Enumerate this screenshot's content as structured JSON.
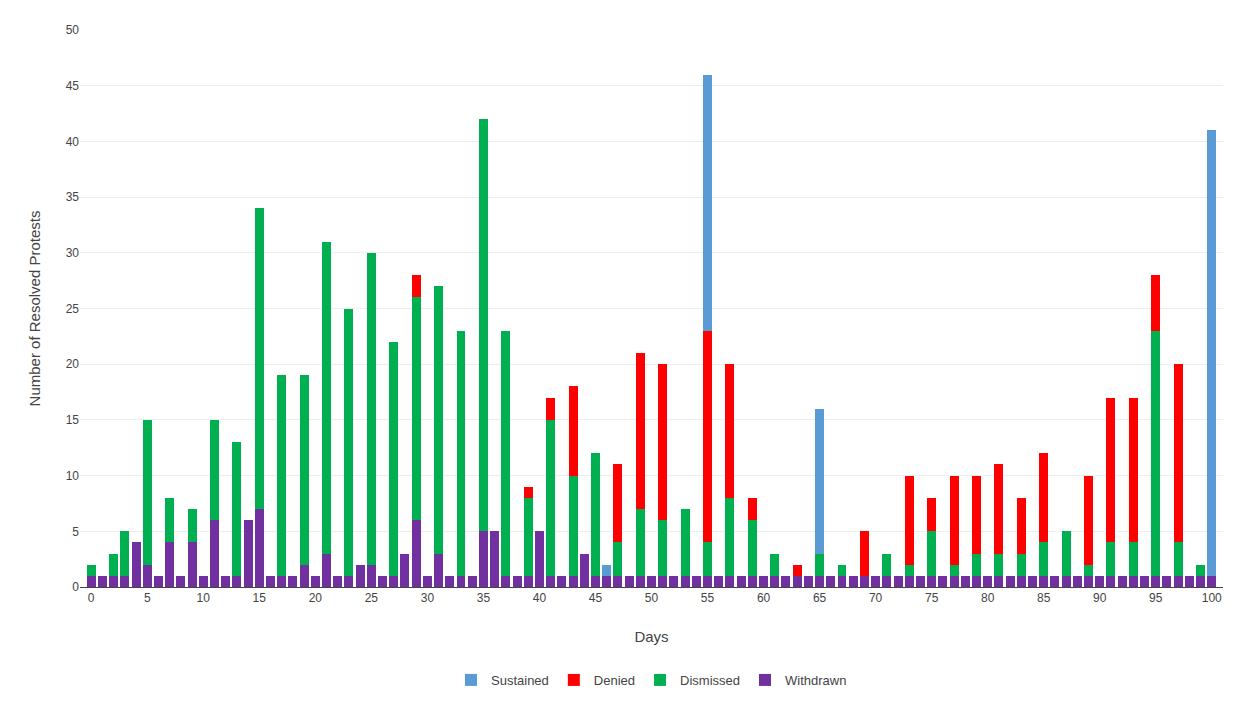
{
  "chart_data": {
    "type": "bar",
    "stacked": true,
    "xlabel": "Days",
    "ylabel": "Number of Resolved Protests",
    "x": [
      0,
      1,
      2,
      3,
      4,
      5,
      6,
      7,
      8,
      9,
      10,
      11,
      12,
      13,
      14,
      15,
      16,
      17,
      18,
      19,
      20,
      21,
      22,
      23,
      24,
      25,
      26,
      27,
      28,
      29,
      30,
      31,
      32,
      33,
      34,
      35,
      36,
      37,
      38,
      39,
      40,
      41,
      42,
      43,
      44,
      45,
      46,
      47,
      48,
      49,
      50,
      51,
      52,
      53,
      54,
      55,
      56,
      57,
      58,
      59,
      60,
      61,
      62,
      63,
      64,
      65,
      66,
      67,
      68,
      69,
      70,
      71,
      72,
      73,
      74,
      75,
      76,
      77,
      78,
      79,
      80,
      81,
      82,
      83,
      84,
      85,
      86,
      87,
      88,
      89,
      90,
      91,
      92,
      93,
      94,
      95,
      96,
      97,
      98,
      99,
      100
    ],
    "series": [
      {
        "name": "Withdrawn",
        "color": "#7030a0",
        "values": [
          1,
          1,
          1,
          1,
          4,
          2,
          1,
          4,
          1,
          4,
          1,
          6,
          1,
          1,
          6,
          7,
          1,
          1,
          1,
          2,
          1,
          3,
          1,
          1,
          2,
          2,
          1,
          1,
          3,
          6,
          1,
          3,
          1,
          1,
          1,
          5,
          5,
          1,
          1,
          1,
          5,
          1,
          1,
          1,
          3,
          1,
          1,
          1,
          1,
          1,
          1,
          1,
          1,
          1,
          1,
          1,
          1,
          1,
          1,
          1,
          1,
          1,
          1,
          1,
          1,
          1,
          1,
          1,
          1,
          1,
          1,
          1,
          1,
          1,
          1,
          1,
          1,
          1,
          1,
          1,
          1,
          1,
          1,
          1,
          1,
          1,
          1,
          1,
          1,
          1,
          1,
          1,
          1,
          1,
          1,
          1,
          1,
          1,
          1,
          1,
          1
        ]
      },
      {
        "name": "Dismissed",
        "color": "#00b050",
        "values": [
          1,
          0,
          2,
          4,
          0,
          13,
          0,
          4,
          0,
          3,
          0,
          9,
          0,
          12,
          0,
          27,
          0,
          18,
          0,
          17,
          0,
          28,
          0,
          24,
          0,
          28,
          0,
          21,
          0,
          20,
          0,
          24,
          0,
          22,
          0,
          37,
          0,
          22,
          0,
          7,
          0,
          14,
          0,
          9,
          0,
          11,
          0,
          3,
          0,
          6,
          0,
          5,
          0,
          6,
          0,
          3,
          0,
          7,
          0,
          5,
          0,
          2,
          0,
          0,
          0,
          2,
          0,
          1,
          0,
          0,
          0,
          2,
          0,
          1,
          0,
          4,
          0,
          1,
          0,
          2,
          0,
          2,
          0,
          2,
          0,
          3,
          0,
          4,
          0,
          1,
          0,
          3,
          0,
          3,
          0,
          22,
          0,
          3,
          0,
          1,
          0
        ]
      },
      {
        "name": "Denied",
        "color": "#ff0000",
        "values": [
          0,
          0,
          0,
          0,
          0,
          0,
          0,
          0,
          0,
          0,
          0,
          0,
          0,
          0,
          0,
          0,
          0,
          0,
          0,
          0,
          0,
          0,
          0,
          0,
          0,
          0,
          0,
          0,
          0,
          2,
          0,
          0,
          0,
          0,
          0,
          0,
          0,
          0,
          0,
          1,
          0,
          2,
          0,
          8,
          0,
          0,
          0,
          7,
          0,
          14,
          0,
          14,
          0,
          0,
          0,
          19,
          0,
          12,
          0,
          2,
          0,
          0,
          0,
          1,
          0,
          0,
          0,
          0,
          0,
          4,
          0,
          0,
          0,
          8,
          0,
          3,
          0,
          8,
          0,
          7,
          0,
          8,
          0,
          5,
          0,
          8,
          0,
          0,
          0,
          8,
          0,
          13,
          0,
          13,
          0,
          5,
          0,
          16,
          0,
          0,
          0
        ]
      },
      {
        "name": "Sustained",
        "color": "#5b9bd5",
        "values": [
          0,
          0,
          0,
          0,
          0,
          0,
          0,
          0,
          0,
          0,
          0,
          0,
          0,
          0,
          0,
          0,
          0,
          0,
          0,
          0,
          0,
          0,
          0,
          0,
          0,
          0,
          0,
          0,
          0,
          0,
          0,
          0,
          0,
          0,
          0,
          0,
          0,
          0,
          0,
          0,
          0,
          0,
          0,
          0,
          0,
          0,
          1,
          0,
          0,
          0,
          0,
          0,
          0,
          0,
          0,
          23,
          0,
          0,
          0,
          0,
          0,
          0,
          0,
          0,
          0,
          13,
          0,
          0,
          0,
          0,
          0,
          0,
          0,
          0,
          0,
          0,
          0,
          0,
          0,
          0,
          0,
          0,
          0,
          0,
          0,
          0,
          0,
          0,
          0,
          0,
          0,
          0,
          0,
          0,
          0,
          0,
          0,
          0,
          0,
          0,
          40
        ]
      }
    ],
    "xlim": [
      -1,
      101
    ],
    "xticks": [
      0,
      5,
      10,
      15,
      20,
      25,
      30,
      35,
      40,
      45,
      50,
      55,
      60,
      65,
      70,
      75,
      80,
      85,
      90,
      95,
      100
    ],
    "ylim": [
      0,
      50
    ],
    "yticks": [
      0,
      5,
      10,
      15,
      20,
      25,
      30,
      35,
      40,
      45,
      50
    ],
    "grid": true,
    "legend": "bottom"
  }
}
